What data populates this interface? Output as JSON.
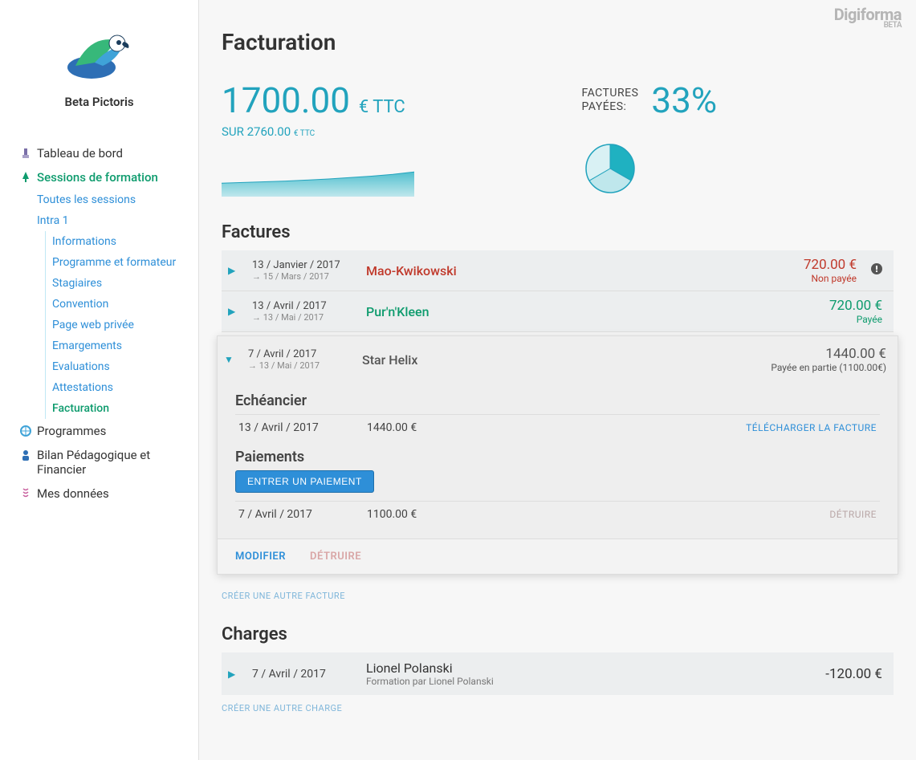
{
  "brand": {
    "company": "Beta Pictoris",
    "app": "Digiforma",
    "tag": "BETA"
  },
  "nav": {
    "dashboard": "Tableau de bord",
    "sessions": "Sessions de formation",
    "sessions_sub": {
      "all": "Toutes les sessions",
      "intra": "Intra 1",
      "items": {
        "infos": "Informations",
        "program": "Programme et formateur",
        "trainees": "Stagiaires",
        "convention": "Convention",
        "private_page": "Page web privée",
        "emargements": "Emargements",
        "evaluations": "Evaluations",
        "attestations": "Attestations",
        "billing": "Facturation"
      }
    },
    "programs": "Programmes",
    "bilan": "Bilan Pédagogique et Financier",
    "mydata": "Mes données"
  },
  "page": {
    "title": "Facturation"
  },
  "summary": {
    "amount": "1700.00",
    "amount_unit": "€ TTC",
    "total_line_prefix": "SUR",
    "total_amount": "2760.00",
    "total_unit": "€ TTC",
    "paid_label_l1": "FACTURES",
    "paid_label_l2": "PAYÉES:",
    "paid_pct": "33%",
    "area_chart": {
      "stroke": "#22a3bd",
      "fill_top": "#53c0cf",
      "fill_bottom": "#bfe7ec",
      "points": [
        0.62,
        0.6,
        0.58,
        0.56,
        0.53,
        0.5,
        0.46,
        0.42,
        0.37,
        0.3
      ]
    },
    "pie": {
      "border": "#22a3bd",
      "slices": [
        {
          "color": "#1fb1c1",
          "fraction": 0.333
        },
        {
          "color": "#bfe7ec",
          "fraction": 0.333
        },
        {
          "color": "#d9f1f4",
          "fraction": 0.334
        }
      ]
    }
  },
  "invoices": {
    "heading": "Factures",
    "create_label": "CRÉER UNE AUTRE FACTURE",
    "row1": {
      "date_start": "13 / Janvier / 2017",
      "date_end": "15 / Mars / 2017",
      "client": "Mao-Kwikowski",
      "amount": "720.00 €",
      "status": "Non payée",
      "color": "#c0392b"
    },
    "row2": {
      "date_start": "13 / Avril / 2017",
      "date_end": "13 / Mai / 2017",
      "client": "Pur'n'Kleen",
      "amount": "720.00 €",
      "status": "Payée",
      "color": "#0d9b6d"
    },
    "row3": {
      "date_start": "7 / Avril / 2017",
      "date_end": "13 / Mai / 2017",
      "client": "Star Helix",
      "amount": "1440.00 €",
      "status": "Payée en partie (1100.00€)",
      "color": "#555555"
    },
    "exp": {
      "echeancier_title": "Echéancier",
      "sched_date": "13 / Avril / 2017",
      "sched_amount": "1440.00 €",
      "download_label": "TÉLÉCHARGER LA FACTURE",
      "paiements_title": "Paiements",
      "enter_payment_btn": "ENTRER UN PAIEMENT",
      "pay_date": "7 / Avril / 2017",
      "pay_amount": "1100.00 €",
      "destroy_label": "DÉTRUIRE",
      "footer_modify": "MODIFIER",
      "footer_destroy": "DÉTRUIRE"
    }
  },
  "charges": {
    "heading": "Charges",
    "create_label": "CRÉER UNE AUTRE CHARGE",
    "row1": {
      "date": "7 / Avril / 2017",
      "name": "Lionel Polanski",
      "sub": "Formation par Lionel Polanski",
      "amount": "-120.00 €"
    }
  },
  "colors": {
    "accent": "#22a3bd",
    "link": "#2e8fd8",
    "green": "#0d9b6d",
    "red": "#c0392b",
    "panel": "#eceeef"
  }
}
